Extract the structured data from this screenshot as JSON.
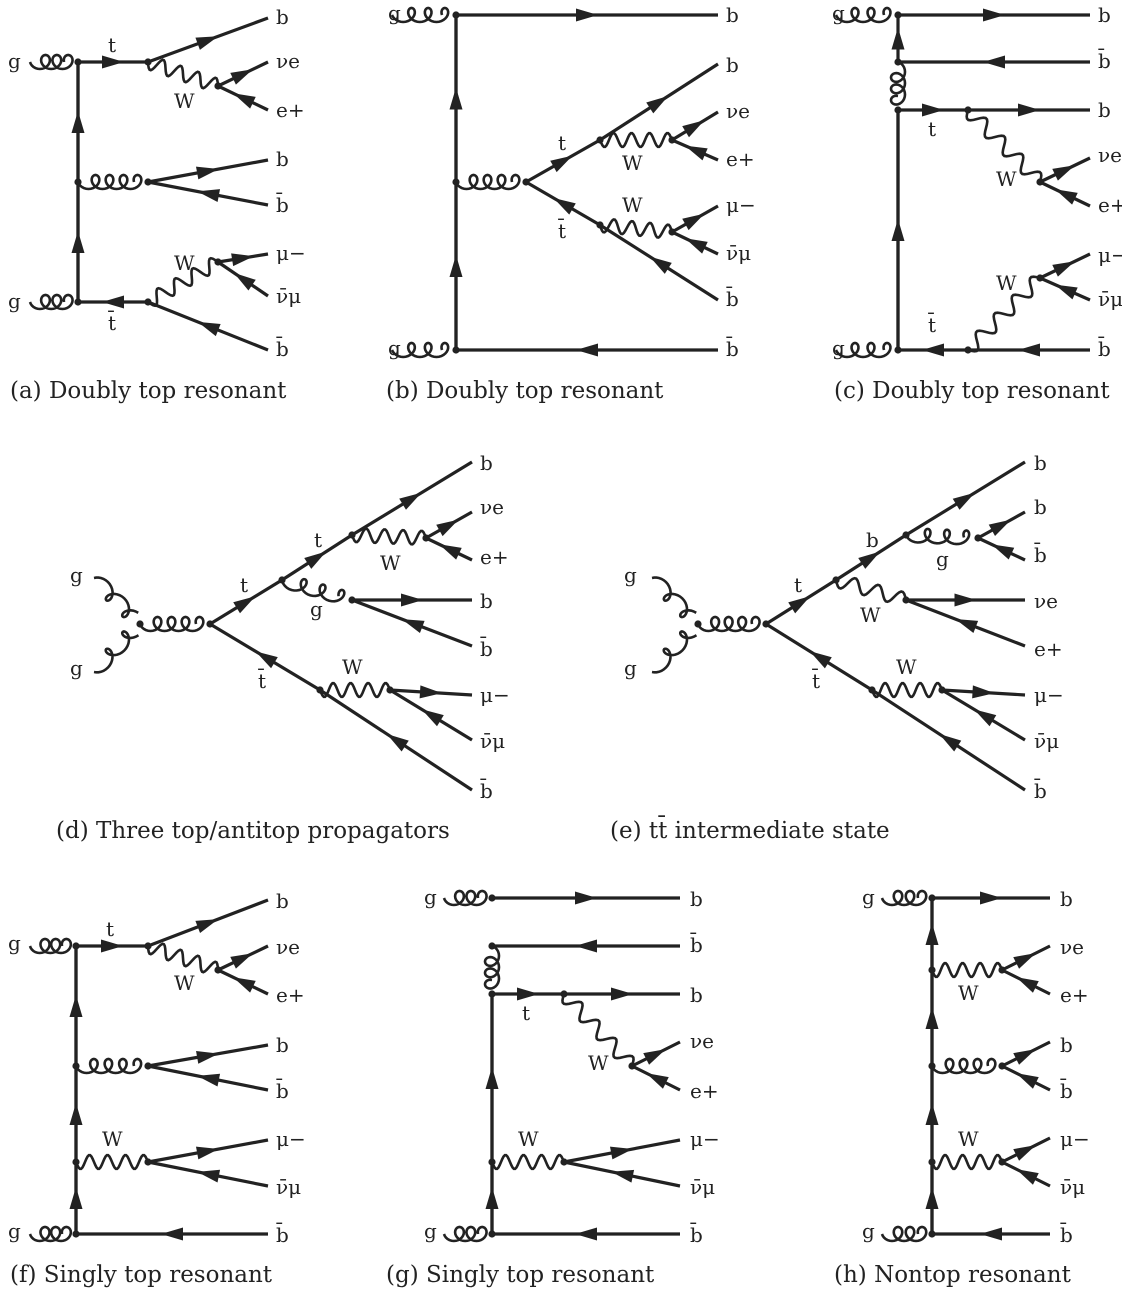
{
  "diagrams": [
    {
      "id": "a",
      "caption": "(a) Doubly top resonant",
      "labels": {
        "g_top": "g",
        "g_bot": "g",
        "t": "t",
        "tbar": "t̄",
        "W1": "W",
        "W2": "W",
        "b1": "b",
        "nue": "νe",
        "ep": "e+",
        "b2": "b",
        "bbar2": "b̄",
        "mu": "μ−",
        "numubar": "ν̄μ",
        "bbar3": "b̄"
      }
    },
    {
      "id": "b",
      "caption": "(b) Doubly top resonant",
      "labels": {
        "g_top": "g",
        "g_bot": "g",
        "t": "t",
        "tbar": "t̄",
        "W1": "W",
        "W2": "W",
        "b1": "b",
        "b2": "b",
        "nue": "νe",
        "ep": "e+",
        "mu": "μ−",
        "numubar": "ν̄μ",
        "bbar2": "b̄",
        "bbar3": "b̄"
      }
    },
    {
      "id": "c",
      "caption": "(c) Doubly top resonant",
      "labels": {
        "g_top": "g",
        "g_bot": "g",
        "t": "t",
        "tbar": "t̄",
        "W1": "W",
        "W2": "W",
        "b1": "b",
        "bbar1": "b̄",
        "b2": "b",
        "nue": "νe",
        "ep": "e+",
        "mu": "μ−",
        "numubar": "ν̄μ",
        "bbar3": "b̄"
      }
    },
    {
      "id": "d",
      "caption": "(d) Three top/antitop propagators",
      "labels": {
        "g_top": "g",
        "g_bot": "g",
        "t1": "t",
        "t2": "t",
        "tbar": "t̄",
        "W1": "W",
        "W2": "W",
        "g_int": "g",
        "b1": "b",
        "nue": "νe",
        "ep": "e+",
        "b2": "b",
        "bbar2": "b̄",
        "mu": "μ−",
        "numubar": "ν̄μ",
        "bbar3": "b̄"
      }
    },
    {
      "id": "e",
      "caption": "(e) tt̄ intermediate state",
      "labels": {
        "g_top": "g",
        "g_bot": "g",
        "t": "t",
        "b_int": "b",
        "tbar": "t̄",
        "W1": "W",
        "W2": "W",
        "g_int": "g",
        "b1": "b",
        "b2": "b",
        "bbar2": "b̄",
        "nue": "νe",
        "ep": "e+",
        "mu": "μ−",
        "numubar": "ν̄μ",
        "bbar3": "b̄"
      }
    },
    {
      "id": "f",
      "caption": "(f) Singly top resonant",
      "labels": {
        "g_top": "g",
        "g_bot": "g",
        "t": "t",
        "W1": "W",
        "W2": "W",
        "b1": "b",
        "nue": "νe",
        "ep": "e+",
        "b2": "b",
        "bbar2": "b̄",
        "mu": "μ−",
        "numubar": "ν̄μ",
        "bbar3": "b̄"
      }
    },
    {
      "id": "g",
      "caption": "(g) Singly top resonant",
      "labels": {
        "g_top": "g",
        "g_bot": "g",
        "t": "t",
        "W1": "W",
        "W2": "W",
        "b1": "b",
        "bbar1": "b̄",
        "b2": "b",
        "nue": "νe",
        "ep": "e+",
        "mu": "μ−",
        "numubar": "ν̄μ",
        "bbar3": "b̄"
      }
    },
    {
      "id": "h",
      "caption": "(h) Nontop resonant",
      "labels": {
        "g_top": "g",
        "g_bot": "g",
        "W1": "W",
        "W2": "W",
        "b1": "b",
        "nue": "νe",
        "ep": "e+",
        "b2": "b",
        "bbar2": "b̄",
        "mu": "μ−",
        "numubar": "ν̄μ",
        "bbar3": "b̄"
      }
    }
  ]
}
